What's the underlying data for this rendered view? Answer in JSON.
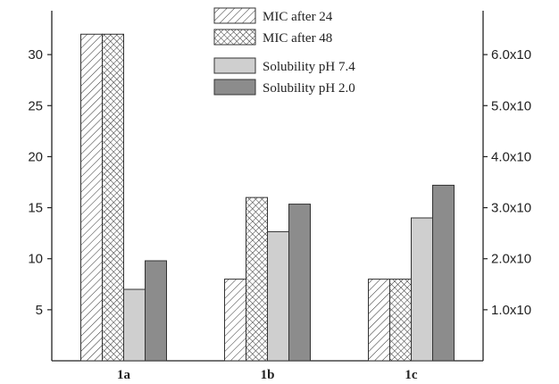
{
  "chart_data": {
    "type": "bar",
    "categories": [
      "1a",
      "1b",
      "1c"
    ],
    "series": [
      {
        "name": "MIC after 24",
        "values": [
          32,
          8,
          8
        ],
        "axis": "left",
        "fill": "hatch"
      },
      {
        "name": "MIC after 48",
        "values": [
          32,
          16,
          8
        ],
        "axis": "left",
        "fill": "crosshatch"
      },
      {
        "name": "Solubility pH 7.4",
        "values": [
          1.4,
          2.53,
          2.8
        ],
        "axis": "right",
        "fill": "#cfcfcf"
      },
      {
        "name": "Solubility pH 2.0",
        "values": [
          1.96,
          3.07,
          3.44
        ],
        "axis": "right",
        "fill": "#8c8c8c"
      }
    ],
    "left_axis": {
      "ticks": [
        5,
        10,
        15,
        20,
        25,
        30
      ],
      "ylim": [
        0,
        34.3
      ]
    },
    "right_axis": {
      "ticks": [
        1.0,
        2.0,
        3.0,
        4.0,
        5.0,
        6.0
      ],
      "tick_labels": [
        "1.0x10",
        "2.0x10",
        "3.0x10",
        "4.0x10",
        "5.0x10",
        "6.0x10"
      ],
      "ylim": [
        0,
        6.86
      ]
    },
    "title": "",
    "xlabel": "",
    "ylabel": "",
    "legend_position": "top-center",
    "grid": false
  }
}
